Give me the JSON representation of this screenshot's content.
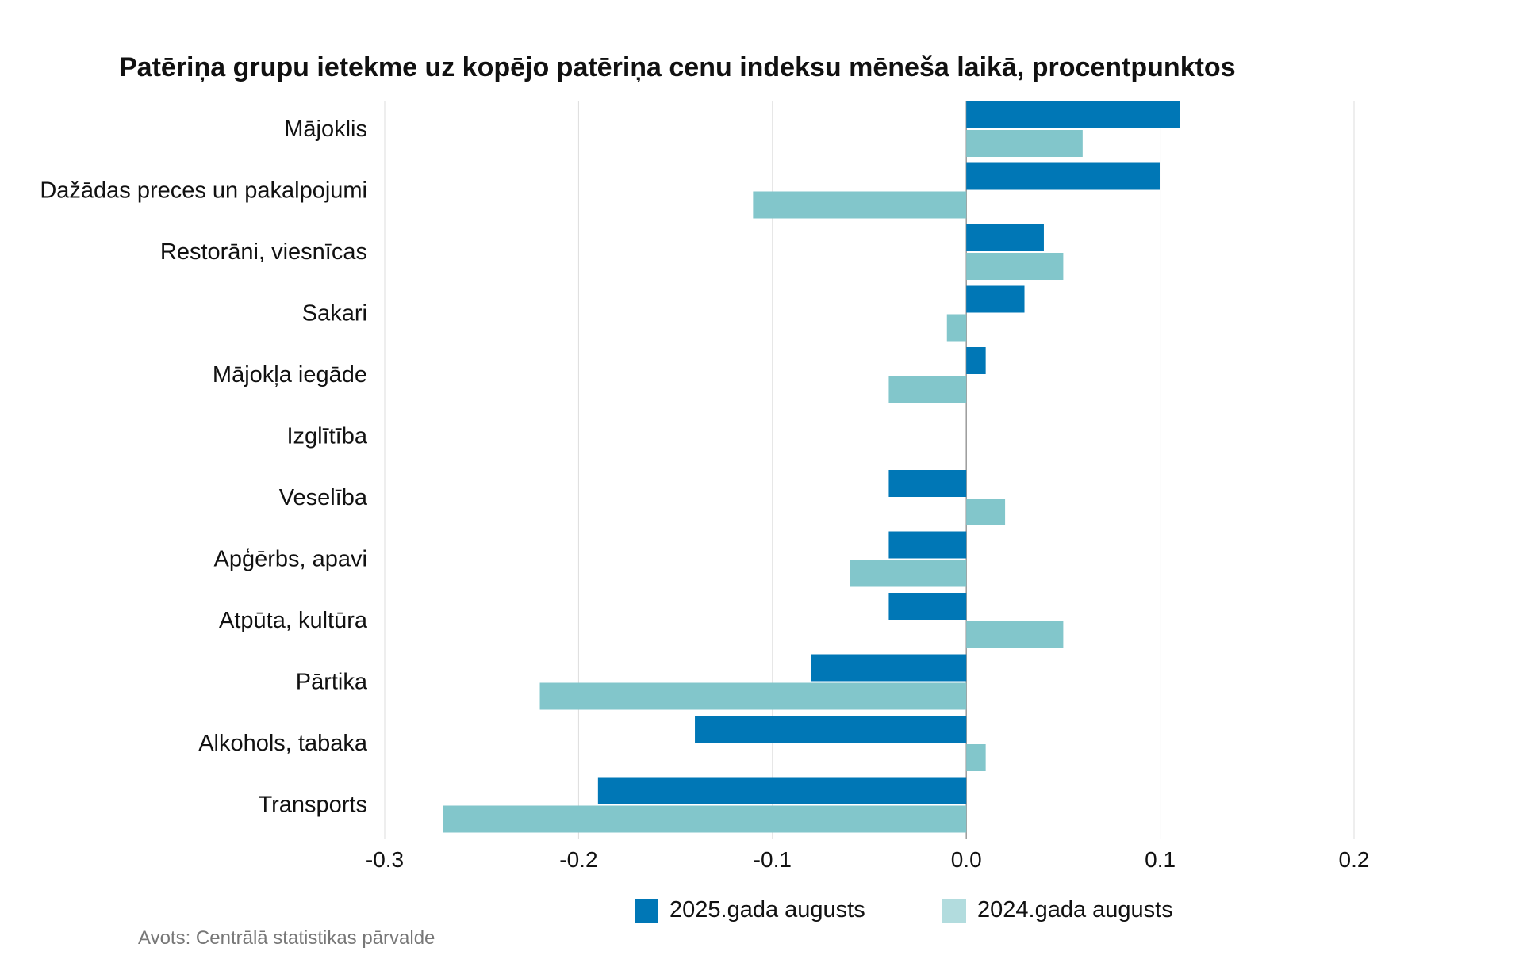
{
  "chart_data": {
    "type": "bar",
    "orientation": "horizontal",
    "title": "Patēriņa grupu ietekme uz kopējo patēriņa cenu indeksu mēneša laikā, procentpunktos",
    "categories": [
      "Mājoklis",
      "Dažādas preces un pakalpojumi",
      "Restorāni, viesnīcas",
      "Sakari",
      "Mājokļa iegāde",
      "Izglītība",
      "Veselība",
      "Apģērbs, apavi",
      "Atpūta, kultūra",
      "Pārtika",
      "Alkohols, tabaka",
      "Transports"
    ],
    "series": [
      {
        "name": "2025.gada augusts",
        "color": "#0077b6",
        "values": [
          0.11,
          0.1,
          0.04,
          0.03,
          0.01,
          0.0,
          -0.04,
          -0.04,
          -0.04,
          -0.08,
          -0.14,
          -0.19
        ]
      },
      {
        "name": "2024.gada augusts",
        "color": "#82c6cb",
        "values": [
          0.06,
          -0.11,
          0.05,
          -0.01,
          -0.04,
          0.0,
          0.02,
          -0.06,
          0.05,
          -0.22,
          0.01,
          -0.27
        ]
      }
    ],
    "xlim": [
      -0.3,
      0.2
    ],
    "xticks": [
      -0.3,
      -0.2,
      -0.1,
      0.0,
      0.1,
      0.2
    ],
    "xtick_labels": [
      "-0.3",
      "-0.2",
      "-0.1",
      "0.0",
      "0.1",
      "0.2"
    ],
    "grid": true,
    "legend_position": "bottom"
  },
  "legend": {
    "items": [
      {
        "label": "2025.gada augusts",
        "color": "#0077b6"
      },
      {
        "label": "2024.gada augusts",
        "color": "#b2dcde"
      }
    ]
  },
  "source": "Avots: Centrālā statistikas pārvalde"
}
